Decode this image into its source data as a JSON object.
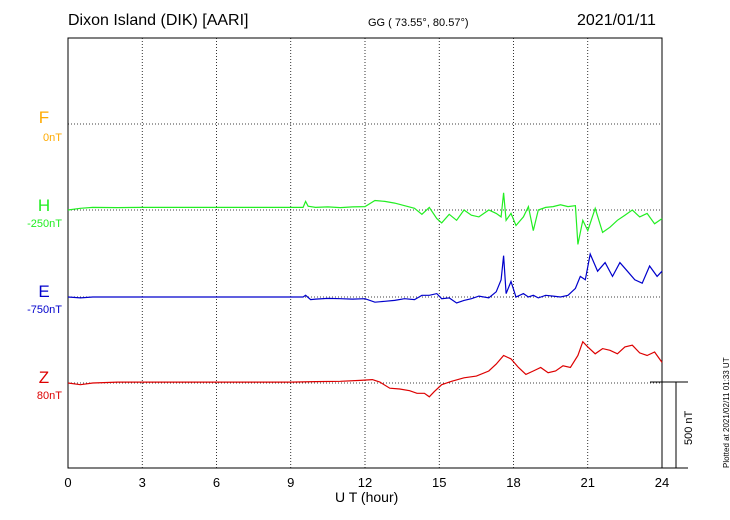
{
  "header": {
    "station": "Dixon Island (DIK)  [AARI]",
    "coords": "GG ( 73.55°,  80.57°)",
    "date": "2021/01/11"
  },
  "footer": {
    "plotted": "Plotted at 2021/02/11 01:33 UT"
  },
  "colors": {
    "F": "#ffaa00",
    "H": "#22ee22",
    "E": "#0000cc",
    "Z": "#dd0000"
  },
  "chart_data": {
    "type": "line",
    "xlabel": "U T (hour)",
    "xlim": [
      0,
      24
    ],
    "xticks": [
      "0",
      "3",
      "6",
      "9",
      "12",
      "15",
      "18",
      "21",
      "24"
    ],
    "scale_bar": "500 nT",
    "components": [
      {
        "name": "F",
        "base": "0nT",
        "color": "#ffaa00"
      },
      {
        "name": "H",
        "base": "-250nT",
        "color": "#22ee22"
      },
      {
        "name": "E",
        "base": "-750nT",
        "color": "#0000cc"
      },
      {
        "name": "Z",
        "base": "80nT",
        "color": "#dd0000"
      }
    ],
    "series": [
      {
        "name": "H",
        "color": "#22ee22",
        "x": [
          0,
          0.5,
          1,
          2,
          3,
          4,
          5,
          6,
          7,
          8,
          9,
          9.5,
          9.6,
          9.7,
          10,
          10.5,
          11,
          11.5,
          12,
          12.4,
          12.8,
          13.2,
          13.6,
          14,
          14.3,
          14.6,
          14.9,
          15.1,
          15.4,
          15.7,
          16,
          16.3,
          16.6,
          17,
          17.3,
          17.5,
          17.6,
          17.7,
          17.9,
          18.1,
          18.4,
          18.6,
          18.8,
          19,
          19.3,
          19.6,
          19.9,
          20.2,
          20.5,
          20.6,
          20.8,
          21,
          21.3,
          21.6,
          21.9,
          22.2,
          22.5,
          22.8,
          23.1,
          23.4,
          23.7,
          24
        ],
        "y": [
          0,
          10,
          15,
          14,
          15,
          15,
          15,
          15,
          15,
          15,
          15,
          15,
          50,
          22,
          15,
          18,
          14,
          18,
          20,
          55,
          50,
          40,
          25,
          10,
          -25,
          15,
          -50,
          -75,
          -25,
          -60,
          0,
          -30,
          -40,
          0,
          -20,
          -40,
          100,
          -60,
          -20,
          -90,
          -40,
          20,
          -120,
          0,
          15,
          20,
          30,
          20,
          25,
          -200,
          -60,
          -120,
          10,
          -130,
          -100,
          -60,
          -30,
          0,
          -40,
          -20,
          -80,
          -50
        ]
      },
      {
        "name": "E",
        "color": "#0000cc",
        "x": [
          0,
          0.5,
          1,
          2,
          3,
          4,
          5,
          6,
          7,
          8,
          9,
          9.5,
          9.6,
          9.8,
          10,
          10.5,
          11,
          11.5,
          12,
          12.4,
          12.8,
          13.2,
          13.6,
          14,
          14.3,
          14.6,
          14.9,
          15.1,
          15.4,
          15.7,
          16,
          16.3,
          16.6,
          17,
          17.3,
          17.5,
          17.6,
          17.7,
          17.9,
          18.1,
          18.4,
          18.6,
          18.8,
          19,
          19.3,
          19.6,
          19.9,
          20.2,
          20.5,
          20.7,
          20.9,
          21.1,
          21.4,
          21.7,
          22,
          22.3,
          22.6,
          22.9,
          23.2,
          23.5,
          23.8,
          24
        ],
        "y": [
          0,
          -5,
          0,
          0,
          0,
          0,
          0,
          0,
          0,
          0,
          0,
          0,
          10,
          -15,
          -12,
          -8,
          -10,
          -12,
          -10,
          -30,
          -25,
          -20,
          -10,
          -15,
          10,
          10,
          20,
          -10,
          -5,
          -35,
          -20,
          -10,
          5,
          -5,
          30,
          100,
          240,
          20,
          90,
          0,
          20,
          0,
          10,
          -5,
          10,
          5,
          0,
          10,
          50,
          120,
          100,
          250,
          150,
          200,
          120,
          200,
          150,
          100,
          80,
          180,
          120,
          150
        ]
      },
      {
        "name": "Z",
        "color": "#dd0000",
        "x": [
          0,
          0.5,
          1,
          2,
          3,
          4,
          5,
          6,
          7,
          8,
          9,
          10,
          11,
          11.8,
          12.3,
          12.6,
          13,
          13.4,
          13.8,
          14.1,
          14.4,
          14.6,
          14.8,
          15.1,
          15.5,
          16,
          16.5,
          17,
          17.3,
          17.6,
          17.9,
          18.2,
          18.5,
          18.8,
          19.1,
          19.4,
          19.7,
          20,
          20.3,
          20.6,
          20.8,
          21,
          21.3,
          21.6,
          21.9,
          22.2,
          22.5,
          22.8,
          23.1,
          23.4,
          23.7,
          24
        ],
        "y": [
          0,
          -10,
          0,
          5,
          5,
          5,
          5,
          5,
          5,
          5,
          5,
          8,
          10,
          15,
          20,
          5,
          -30,
          -35,
          -45,
          -60,
          -60,
          -80,
          -50,
          -10,
          10,
          30,
          40,
          70,
          110,
          160,
          140,
          90,
          50,
          70,
          90,
          60,
          70,
          100,
          90,
          160,
          240,
          210,
          170,
          200,
          190,
          170,
          210,
          220,
          175,
          160,
          180,
          120
        ]
      }
    ]
  }
}
